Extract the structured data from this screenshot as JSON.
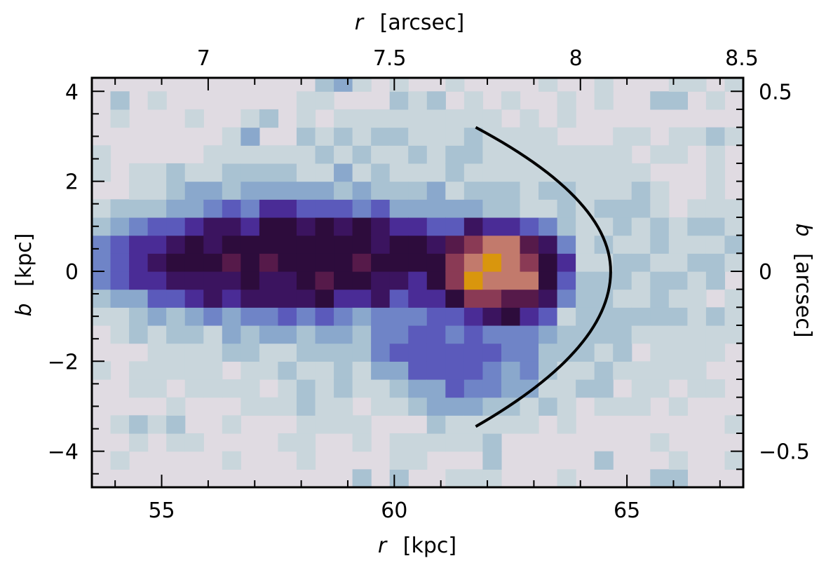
{
  "chart_data": {
    "type": "heatmap",
    "xlabel_bottom": {
      "symbol": "r",
      "unit": "[kpc]"
    },
    "ylabel_left": {
      "symbol": "b",
      "unit": "[kpc]"
    },
    "xlabel_top": {
      "symbol": "r",
      "unit": "[arcsec]"
    },
    "ylabel_right": {
      "symbol": "b",
      "unit": "[arcsec]"
    },
    "xlim": [
      53.5,
      67.5
    ],
    "ylim": [
      -4.8,
      4.3
    ],
    "x_ticks_bottom": [
      55,
      60,
      65
    ],
    "y_ticks_left": [
      4,
      2,
      0,
      -2,
      -4
    ],
    "x_ticks_top": [
      {
        "label": "7",
        "value_kpc": 55.9
      },
      {
        "label": "7.5",
        "value_kpc": 59.9
      },
      {
        "label": "8",
        "value_kpc": 63.9
      },
      {
        "label": "8.5",
        "value_kpc": 67.9
      }
    ],
    "y_ticks_right": [
      {
        "label": "0.5",
        "value_kpc": 4.0
      },
      {
        "label": "0",
        "value_kpc": 0.0
      },
      {
        "label": "−0.5",
        "value_kpc": -4.0
      }
    ],
    "cell_size_kpc": [
      0.4,
      0.4
    ],
    "colormap": [
      "#e0dbe2",
      "#c9d6dc",
      "#a9c2d2",
      "#8aa8cc",
      "#6f84c7",
      "#5b5abb",
      "#4a2c96",
      "#3b145f",
      "#2d0c3c",
      "#561a4a",
      "#8a3a55",
      "#c27a6c",
      "#d9960d"
    ],
    "features": [
      {
        "name": "core",
        "shape": "ellipse",
        "center": [
          62.15,
          0.05
        ],
        "radii": [
          1.45,
          1.0
        ],
        "level": 12
      },
      {
        "name": "core-rim",
        "shape": "ellipse",
        "center": [
          62.15,
          0.0
        ],
        "radii": [
          1.75,
          1.25
        ],
        "level": 10
      },
      {
        "name": "tail",
        "shape": "ellipse",
        "center": [
          57.9,
          0.25
        ],
        "radii": [
          4.4,
          1.3
        ],
        "level": 8.3
      },
      {
        "name": "tail-halo",
        "shape": "ellipse",
        "center": [
          58.2,
          0.3
        ],
        "radii": [
          5.0,
          2.0
        ],
        "level": 3.8
      },
      {
        "name": "outer-halo",
        "shape": "ellipse",
        "center": [
          60.5,
          0.0
        ],
        "radii": [
          7.0,
          3.4
        ],
        "level": 1.8
      },
      {
        "name": "lower-tongue",
        "shape": "ellipse",
        "center": [
          61.4,
          -1.3
        ],
        "radii": [
          2.2,
          2.0
        ],
        "level": 4.6
      }
    ],
    "level_range": [
      0,
      12
    ],
    "bow_curve": {
      "apex": [
        64.65,
        0.0
      ],
      "ends": [
        [
          61.75,
          3.2
        ],
        [
          61.75,
          -3.45
        ]
      ],
      "color": "#000000"
    }
  }
}
